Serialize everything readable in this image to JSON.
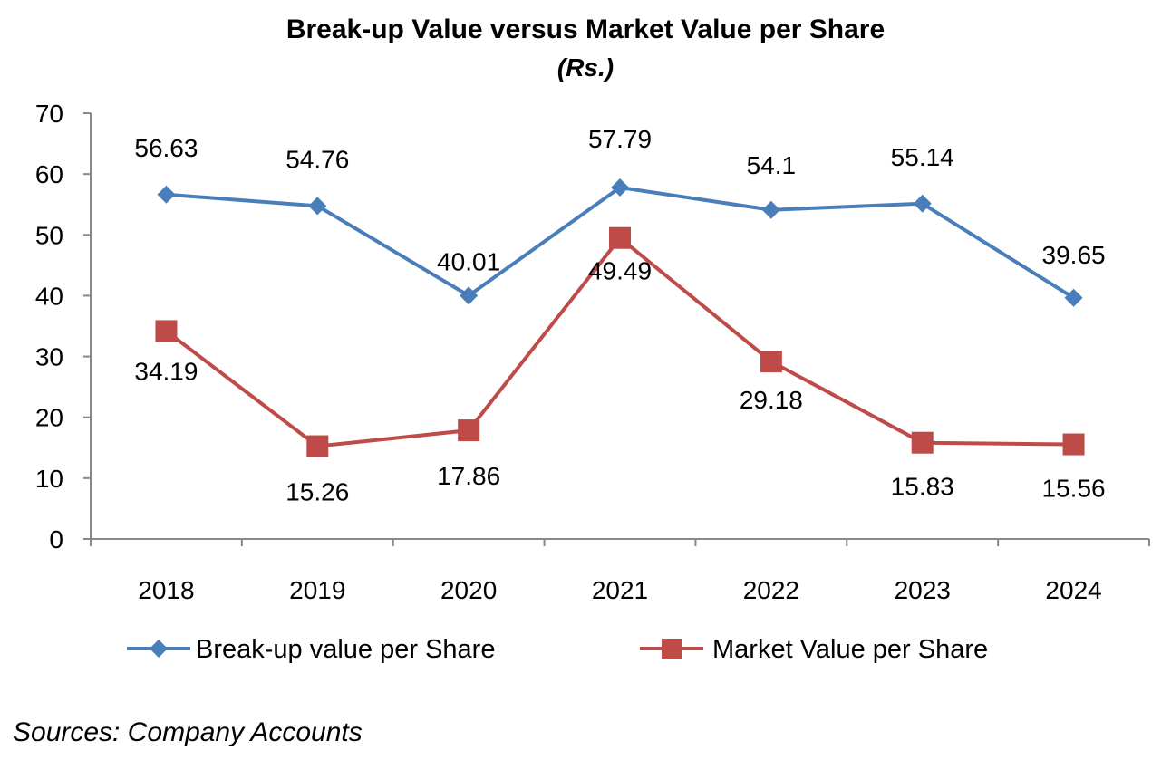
{
  "chart_data": {
    "type": "line",
    "title": "Break-up Value versus Market Value per Share",
    "subtitle": "(Rs.)",
    "categories": [
      "2018",
      "2019",
      "2020",
      "2021",
      "2022",
      "2023",
      "2024"
    ],
    "ylim": [
      0,
      70
    ],
    "yticks": [
      0,
      10,
      20,
      30,
      40,
      50,
      60,
      70
    ],
    "grid": false,
    "legend_position": "bottom",
    "series": [
      {
        "name": "Break-up value per Share",
        "color": "#4a7ebb",
        "marker": "diamond",
        "values": [
          56.63,
          54.76,
          40.01,
          57.79,
          54.1,
          55.14,
          39.65
        ],
        "labels": [
          "56.63",
          "54.76",
          "40.01",
          "57.79",
          "54.1",
          "55.14",
          "39.65"
        ]
      },
      {
        "name": "Market Value per Share",
        "color": "#be4b48",
        "marker": "square",
        "values": [
          34.19,
          15.26,
          17.86,
          49.49,
          29.18,
          15.83,
          15.56
        ],
        "labels": [
          "34.19",
          "15.26",
          "17.86",
          "49.49",
          "29.18",
          "15.83",
          "15.56"
        ]
      }
    ],
    "source_note": "Sources: Company Accounts"
  }
}
